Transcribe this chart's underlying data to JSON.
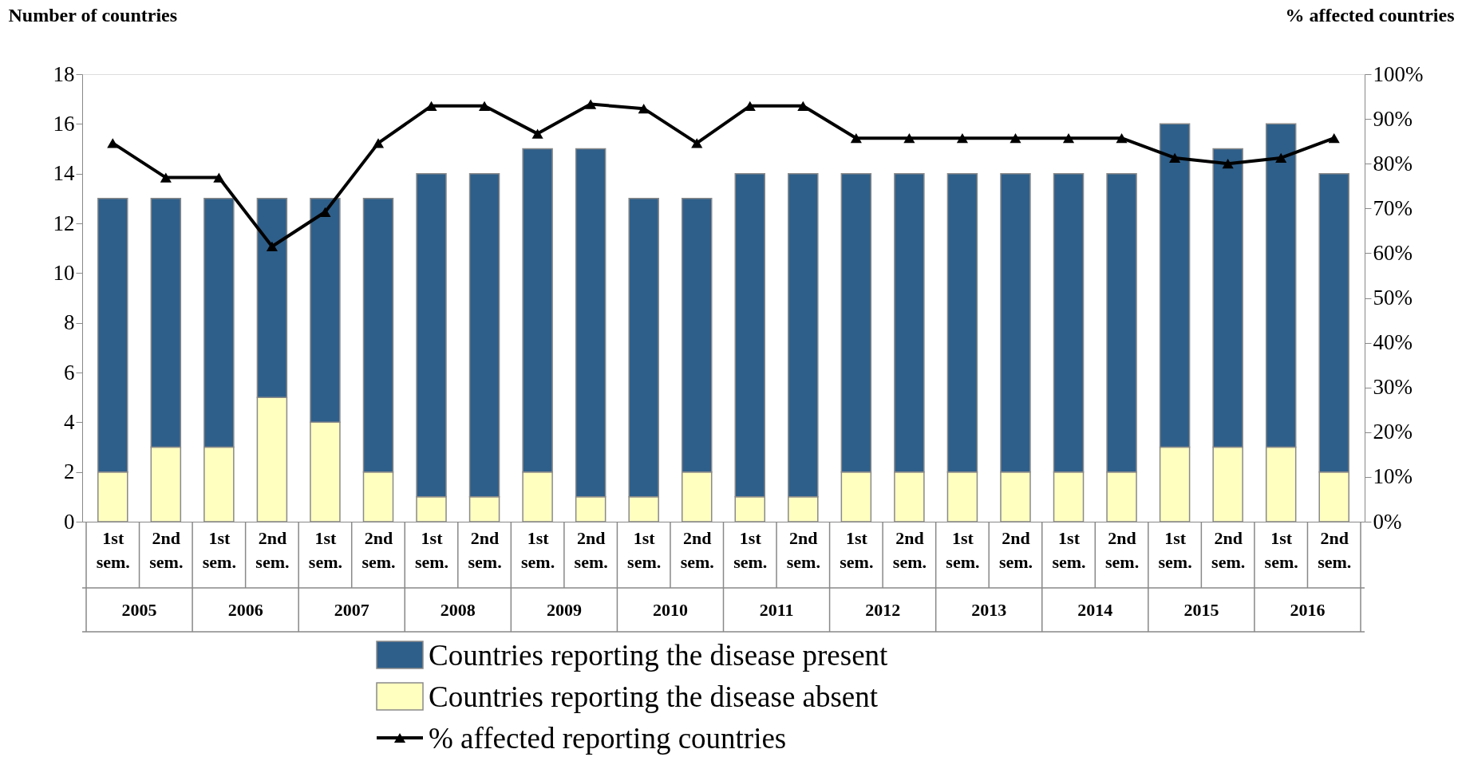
{
  "chart_data": {
    "type": "bar",
    "stacked": true,
    "categories": [
      "1st sem.",
      "2nd sem.",
      "1st sem.",
      "2nd sem.",
      "1st sem.",
      "2nd sem.",
      "1st sem.",
      "2nd sem.",
      "1st sem.",
      "2nd sem.",
      "1st sem.",
      "2nd sem.",
      "1st sem.",
      "2nd sem.",
      "1st sem.",
      "2nd sem.",
      "1st sem.",
      "2nd sem.",
      "1st sem.",
      "2nd sem.",
      "1st sem.",
      "2nd sem.",
      "1st sem.",
      "2nd sem."
    ],
    "annotations": [
      "2005",
      "2006",
      "2007",
      "2008",
      "2009",
      "2010",
      "2011",
      "2012",
      "2013",
      "2014",
      "2015",
      "2016"
    ],
    "ylabel": "Number of countries",
    "y2label": "% affected countries",
    "ylim": [
      0,
      18
    ],
    "yticks": [
      0,
      2,
      4,
      6,
      8,
      10,
      12,
      14,
      16,
      18
    ],
    "y2lim": [
      0,
      100
    ],
    "y2ticks": [
      {
        "value": 0,
        "label": "0%"
      },
      {
        "value": 10,
        "label": "10%"
      },
      {
        "value": 20,
        "label": "20%"
      },
      {
        "value": 30,
        "label": "30%"
      },
      {
        "value": 40,
        "label": "40%"
      },
      {
        "value": 50,
        "label": "50%"
      },
      {
        "value": 60,
        "label": "60%"
      },
      {
        "value": 70,
        "label": "70%"
      },
      {
        "value": 80,
        "label": "80%"
      },
      {
        "value": 90,
        "label": "90%"
      },
      {
        "value": 100,
        "label": "100%"
      }
    ],
    "grid": false,
    "legend": "bottom",
    "series": [
      {
        "name": "Countries reporting the disease absent",
        "color": "#ffffc0",
        "values": [
          2,
          3,
          3,
          5,
          4,
          2,
          1,
          1,
          2,
          1,
          1,
          2,
          1,
          1,
          2,
          2,
          2,
          2,
          2,
          2,
          3,
          3,
          3,
          2
        ]
      },
      {
        "name": "Countries reporting the disease present",
        "color": "#2e5f8a",
        "values": [
          11,
          10,
          10,
          8,
          9,
          11,
          13,
          13,
          13,
          14,
          12,
          11,
          13,
          13,
          12,
          12,
          12,
          12,
          12,
          12,
          13,
          12,
          13,
          12
        ]
      },
      {
        "name": "% affected reporting countries",
        "type": "line",
        "axis": "y2",
        "color": "#000000",
        "marker": "triangle",
        "values": [
          84.6,
          76.9,
          76.9,
          61.5,
          69.2,
          84.6,
          92.9,
          92.9,
          86.7,
          93.3,
          92.3,
          84.6,
          92.9,
          92.9,
          85.7,
          85.7,
          85.7,
          85.7,
          85.7,
          85.7,
          81.3,
          80.0,
          81.3,
          85.7
        ]
      }
    ]
  }
}
